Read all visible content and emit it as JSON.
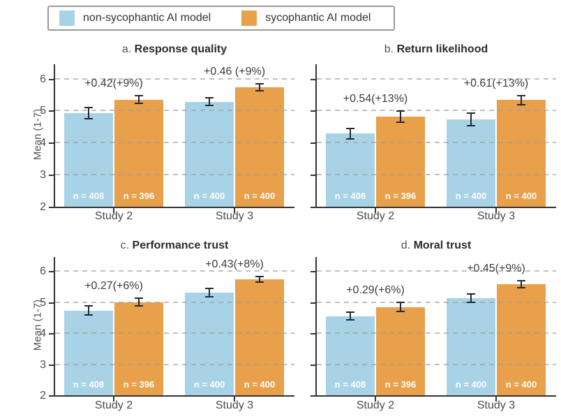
{
  "legend": {
    "items": [
      {
        "label": "non-sycophantic AI model",
        "color": "#A8D3E6"
      },
      {
        "label": "sycophantic AI model",
        "color": "#E8A04A"
      }
    ]
  },
  "chart_data": {
    "type": "bar",
    "title": "",
    "ylabel": "Mean (1-7)",
    "ylim": [
      2,
      6.45
    ],
    "yticks": [
      2,
      3,
      4,
      5,
      6
    ],
    "grid": "dashed horizontal at 3,4,5,6",
    "legend_position": "top",
    "categories": [
      "Study 2",
      "Study 3"
    ],
    "series_names": [
      "non-sycophantic AI model",
      "sycophantic AI model"
    ],
    "colors": {
      "non_sycophantic": "#A8D3E6",
      "sycophantic": "#E8A04A",
      "error_bar": "#1F2937",
      "axis": "#333333",
      "grid": "#9F9F9F"
    },
    "n_labels": [
      [
        "n = 408",
        "n = 396"
      ],
      [
        "n = 400",
        "n = 400"
      ]
    ],
    "panels": [
      {
        "prefix": "a.",
        "title": "Response quality",
        "groups": [
          {
            "category": "Study 2",
            "values": [
              4.92,
              5.34
            ],
            "errors": [
              0.2,
              0.14
            ],
            "annotation": "+0.42(+9%)"
          },
          {
            "category": "Study 3",
            "values": [
              5.28,
              5.74
            ],
            "errors": [
              0.14,
              0.13
            ],
            "annotation": "+0.46 (+9%)"
          }
        ]
      },
      {
        "prefix": "b.",
        "title": "Return likelihood",
        "groups": [
          {
            "category": "Study 2",
            "values": [
              4.28,
              4.82
            ],
            "errors": [
              0.18,
              0.2
            ],
            "annotation": "+0.54(+13%)"
          },
          {
            "category": "Study 3",
            "values": [
              4.72,
              5.33
            ],
            "errors": [
              0.22,
              0.16
            ],
            "annotation": "+0.61(+13%)"
          }
        ]
      },
      {
        "prefix": "c.",
        "title": "Performance trust",
        "groups": [
          {
            "category": "Study 2",
            "values": [
              4.73,
              5.0
            ],
            "errors": [
              0.17,
              0.15
            ],
            "annotation": "+0.27(+6%)"
          },
          {
            "category": "Study 3",
            "values": [
              5.3,
              5.73
            ],
            "errors": [
              0.15,
              0.11
            ],
            "annotation": "+0.43(+8%)"
          }
        ]
      },
      {
        "prefix": "d.",
        "title": "Moral trust",
        "groups": [
          {
            "category": "Study 2",
            "values": [
              4.55,
              4.84
            ],
            "errors": [
              0.15,
              0.17
            ],
            "annotation": "+0.29(+6%)"
          },
          {
            "category": "Study 3",
            "values": [
              5.12,
              5.57
            ],
            "errors": [
              0.16,
              0.13
            ],
            "annotation": "+0.45(+9%)"
          }
        ]
      }
    ]
  }
}
